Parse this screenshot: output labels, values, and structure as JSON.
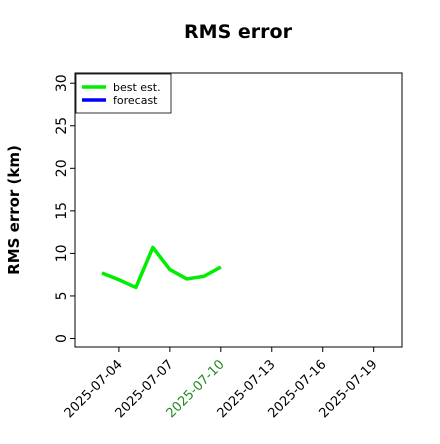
{
  "chart_data": {
    "type": "line",
    "title": "RMS error",
    "ylabel": "RMS error (km)",
    "x": [
      "2025-07-03",
      "2025-07-04",
      "2025-07-05",
      "2025-07-06",
      "2025-07-07",
      "2025-07-08",
      "2025-07-09",
      "2025-07-10"
    ],
    "series": [
      {
        "name": "best est.",
        "color": "#00ee00",
        "values": [
          7.7,
          6.9,
          6.0,
          10.7,
          8.1,
          7.0,
          7.3,
          8.4
        ]
      },
      {
        "name": "forecast",
        "color": "#0000ff",
        "values": [
          null,
          null,
          null,
          null,
          null,
          null,
          null,
          null
        ]
      }
    ],
    "xlim": [
      "2025-07-01T10:00",
      "2025-07-20T16:00"
    ],
    "xticks": [
      "2025-07-04",
      "2025-07-07",
      "2025-07-10",
      "2025-07-13",
      "2025-07-16",
      "2025-07-19"
    ],
    "xtick_colors": [
      "#000000",
      "#000000",
      "#228b22",
      "#000000",
      "#000000",
      "#000000"
    ],
    "ylim": [
      -1,
      31.2
    ],
    "yticks": [
      0,
      5,
      10,
      15,
      20,
      25,
      30
    ],
    "grid": false,
    "legend": "upper left"
  }
}
